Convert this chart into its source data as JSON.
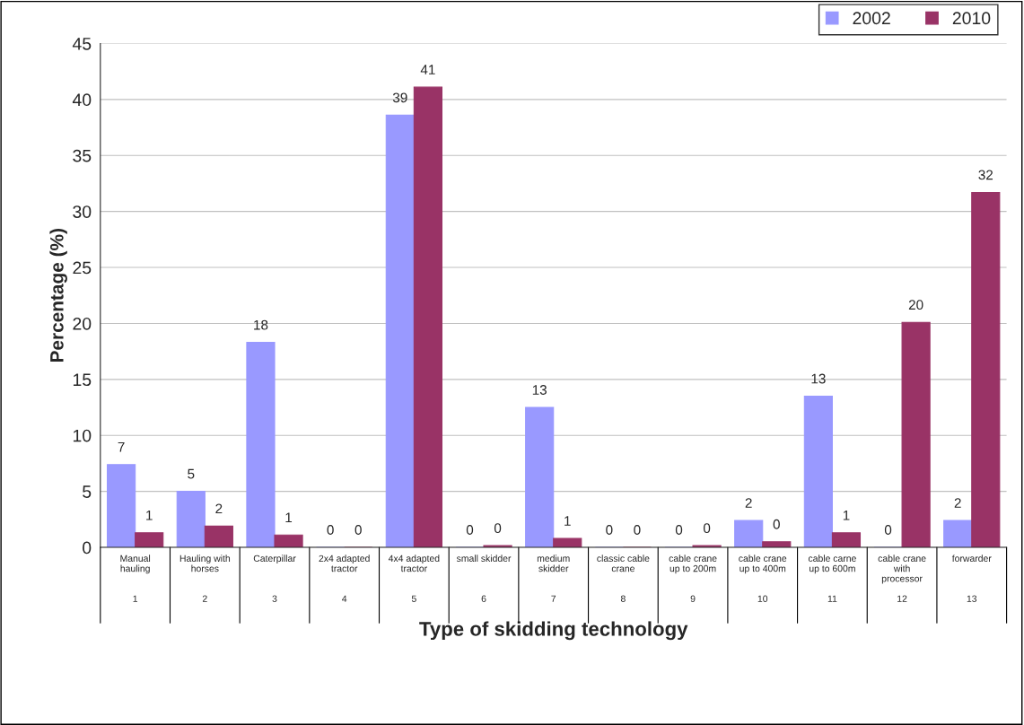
{
  "chart_data": {
    "type": "bar",
    "xlabel": "Type of skidding technology",
    "ylabel": "Percentage (%)",
    "categories": [
      "Manual hauling\n1",
      "Hauling with horses\n2",
      "Caterpillar\n3",
      "2x4 adapted tractor\n4",
      "4x4 adapted tractor\n5",
      "small skidder\n6",
      "medium skidder\n7",
      "classic cable crane\n8",
      "cable crane up to 200m\n9",
      "cable crane up to 400m\n10",
      "cable carne up to 600m\n11",
      "cable crane with processor\n12",
      "forwarder\n13"
    ],
    "series": [
      {
        "name": "2002",
        "color": "#9999ff",
        "values": [
          7.4,
          5.0,
          18.3,
          0,
          38.6,
          0,
          12.5,
          0,
          0,
          2.4,
          13.5,
          0,
          2.4
        ],
        "value_labels": [
          "7",
          "5",
          "18",
          "0",
          "39",
          "0",
          "13",
          "0",
          "0",
          "2",
          "13",
          "0",
          "2"
        ]
      },
      {
        "name": "2010",
        "color": "#993366",
        "values": [
          1.3,
          1.9,
          1.1,
          0,
          41.1,
          0.15,
          0.8,
          0,
          0.15,
          0.5,
          1.3,
          20.1,
          31.7
        ],
        "value_labels": [
          "1",
          "2",
          "1",
          "0",
          "41",
          "0",
          "1",
          "0",
          "0",
          "0",
          "1",
          "20",
          "32"
        ]
      }
    ],
    "ylim": [
      0,
      45
    ],
    "yticks": [
      0,
      5,
      10,
      15,
      20,
      25,
      30,
      35,
      40,
      45
    ],
    "grid": "y",
    "legend": "top right"
  }
}
